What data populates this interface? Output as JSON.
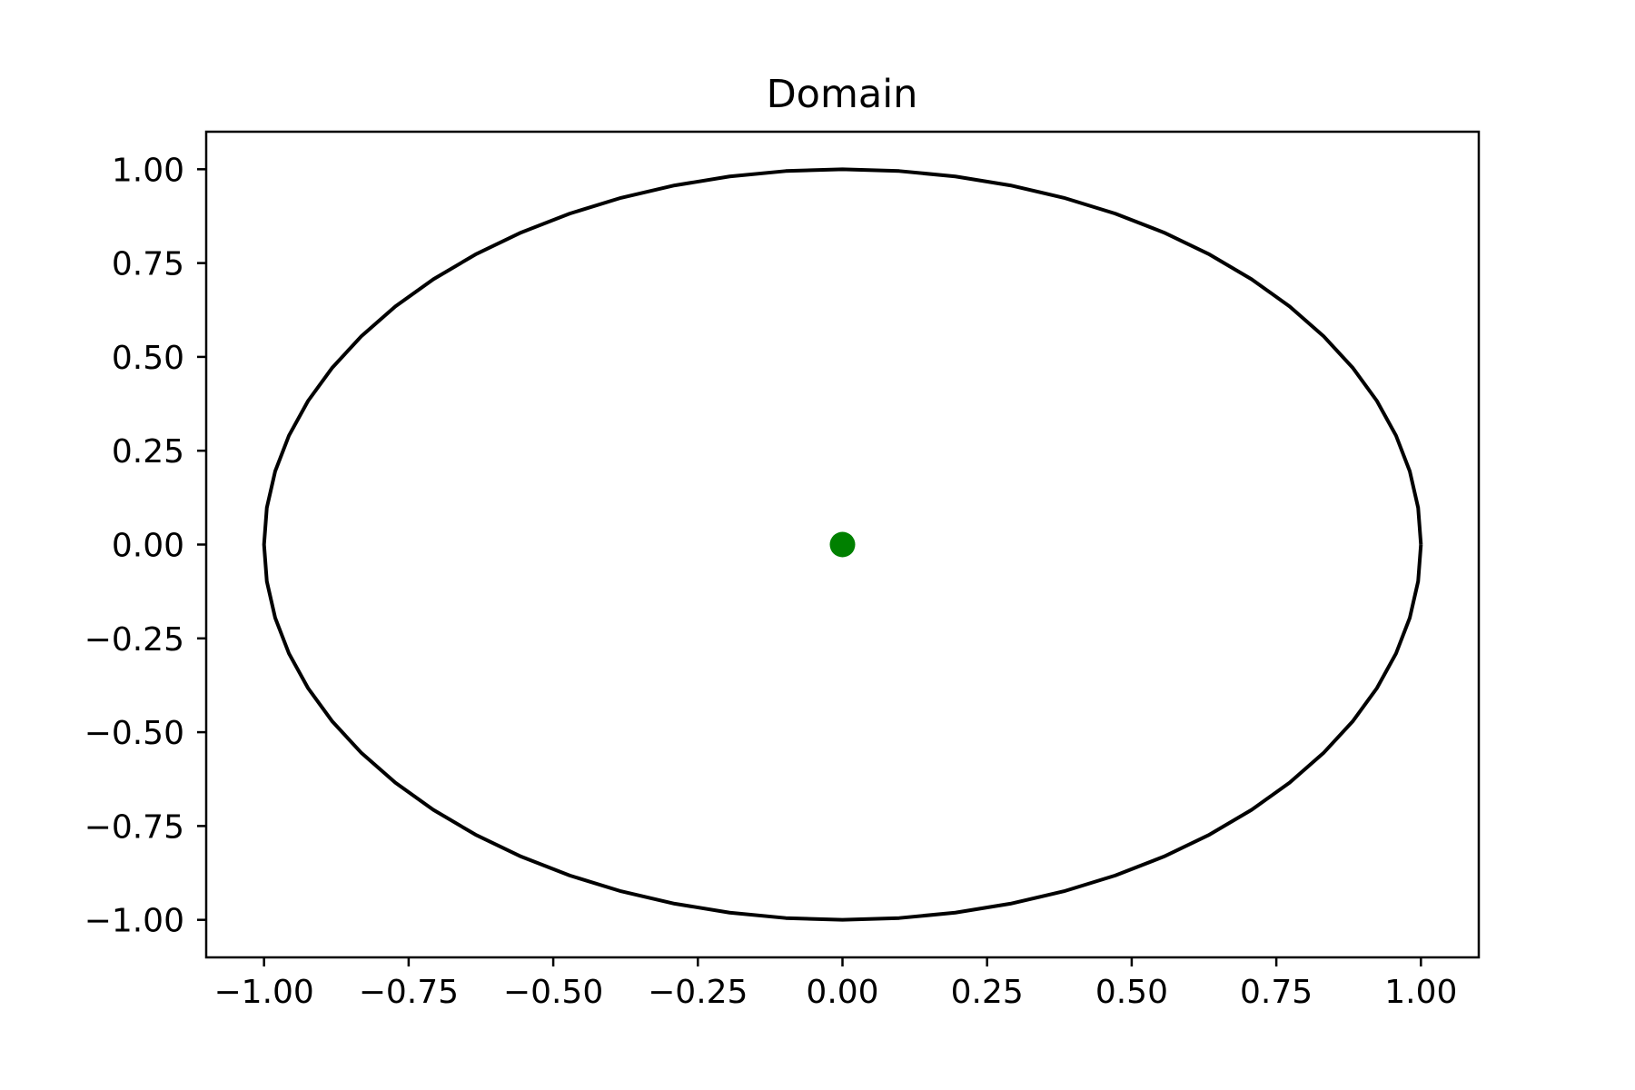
{
  "chart_data": {
    "type": "line",
    "title": "Domain",
    "xlabel": "",
    "ylabel": "",
    "xlim": [
      -1.1,
      1.1
    ],
    "ylim": [
      -1.1,
      1.1
    ],
    "grid": false,
    "x_ticks": [
      -1.0,
      -0.75,
      -0.5,
      -0.25,
      0.0,
      0.25,
      0.5,
      0.75,
      1.0
    ],
    "y_ticks": [
      -1.0,
      -0.75,
      -0.5,
      -0.25,
      0.0,
      0.25,
      0.5,
      0.75,
      1.0
    ],
    "x_tick_labels": [
      "−1.00",
      "−0.75",
      "−0.50",
      "−0.25",
      "0.00",
      "0.25",
      "0.50",
      "0.75",
      "1.00"
    ],
    "y_tick_labels": [
      "−1.00",
      "−0.75",
      "−0.50",
      "−0.25",
      "0.00",
      "0.25",
      "0.50",
      "0.75",
      "1.00"
    ],
    "boundary": {
      "shape": "circle",
      "center": [
        0.0,
        0.0
      ],
      "radius": 1.0,
      "color": "#000000"
    },
    "points": [
      {
        "x": 0.0,
        "y": 0.0,
        "color": "#008000"
      }
    ]
  }
}
